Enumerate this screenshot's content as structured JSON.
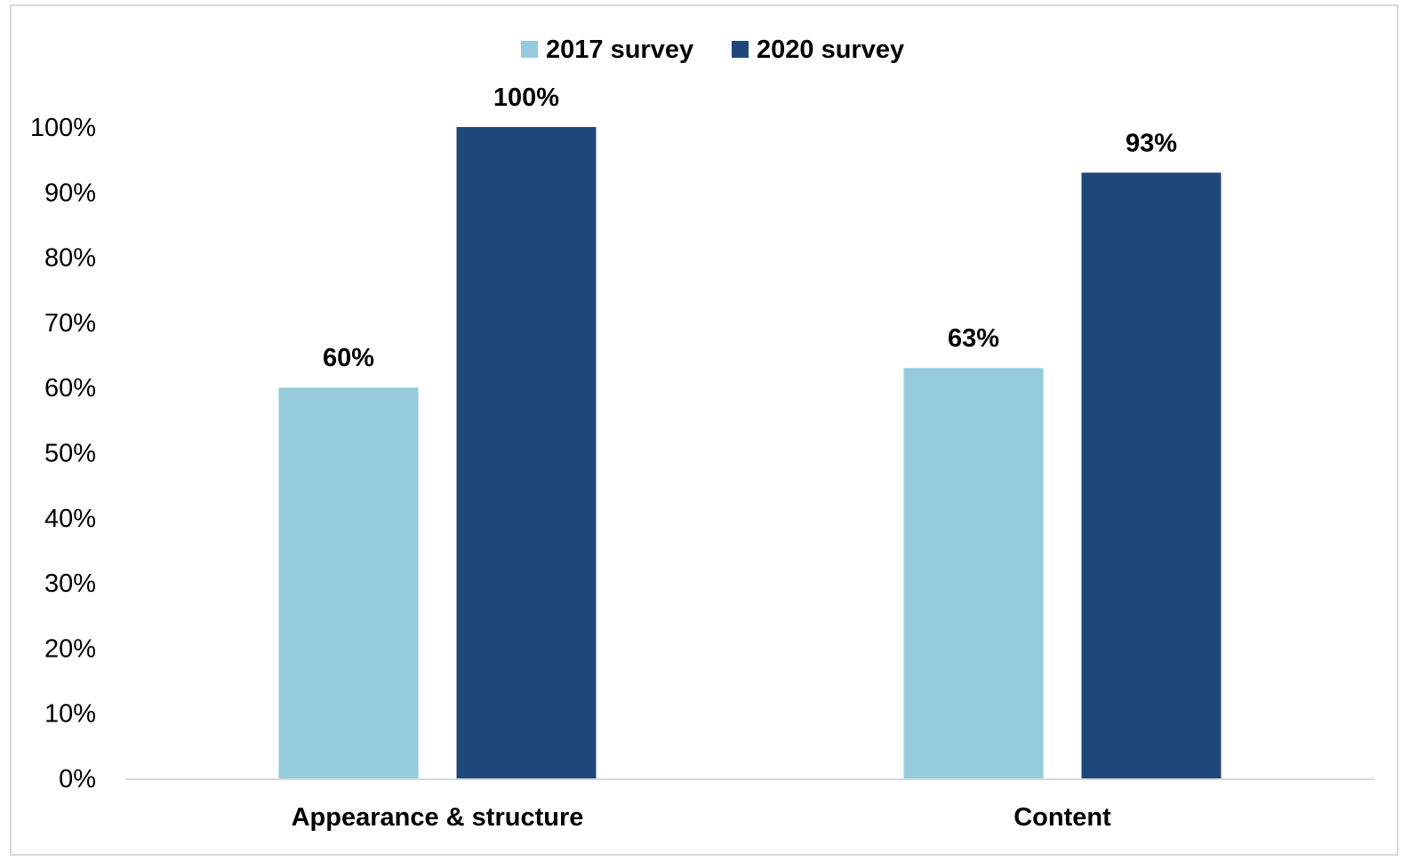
{
  "chart_data": {
    "type": "bar",
    "categories": [
      "Appearance & structure",
      "Content"
    ],
    "series": [
      {
        "name": "2017 survey",
        "values": [
          60,
          63
        ],
        "color": "#95cbdc"
      },
      {
        "name": "2020 survey",
        "values": [
          100,
          93
        ],
        "color": "#1f477a"
      }
    ],
    "data_labels": [
      [
        "60%",
        "63%"
      ],
      [
        "100%",
        "93%"
      ]
    ],
    "y_ticks": [
      "0%",
      "10%",
      "20%",
      "30%",
      "40%",
      "50%",
      "60%",
      "70%",
      "80%",
      "90%",
      "100%"
    ],
    "ylim": [
      0,
      100
    ],
    "grid": false,
    "legend_position": "top-center",
    "title": "",
    "xlabel": "",
    "ylabel": "",
    "axis_color": "#d9d9d9"
  }
}
